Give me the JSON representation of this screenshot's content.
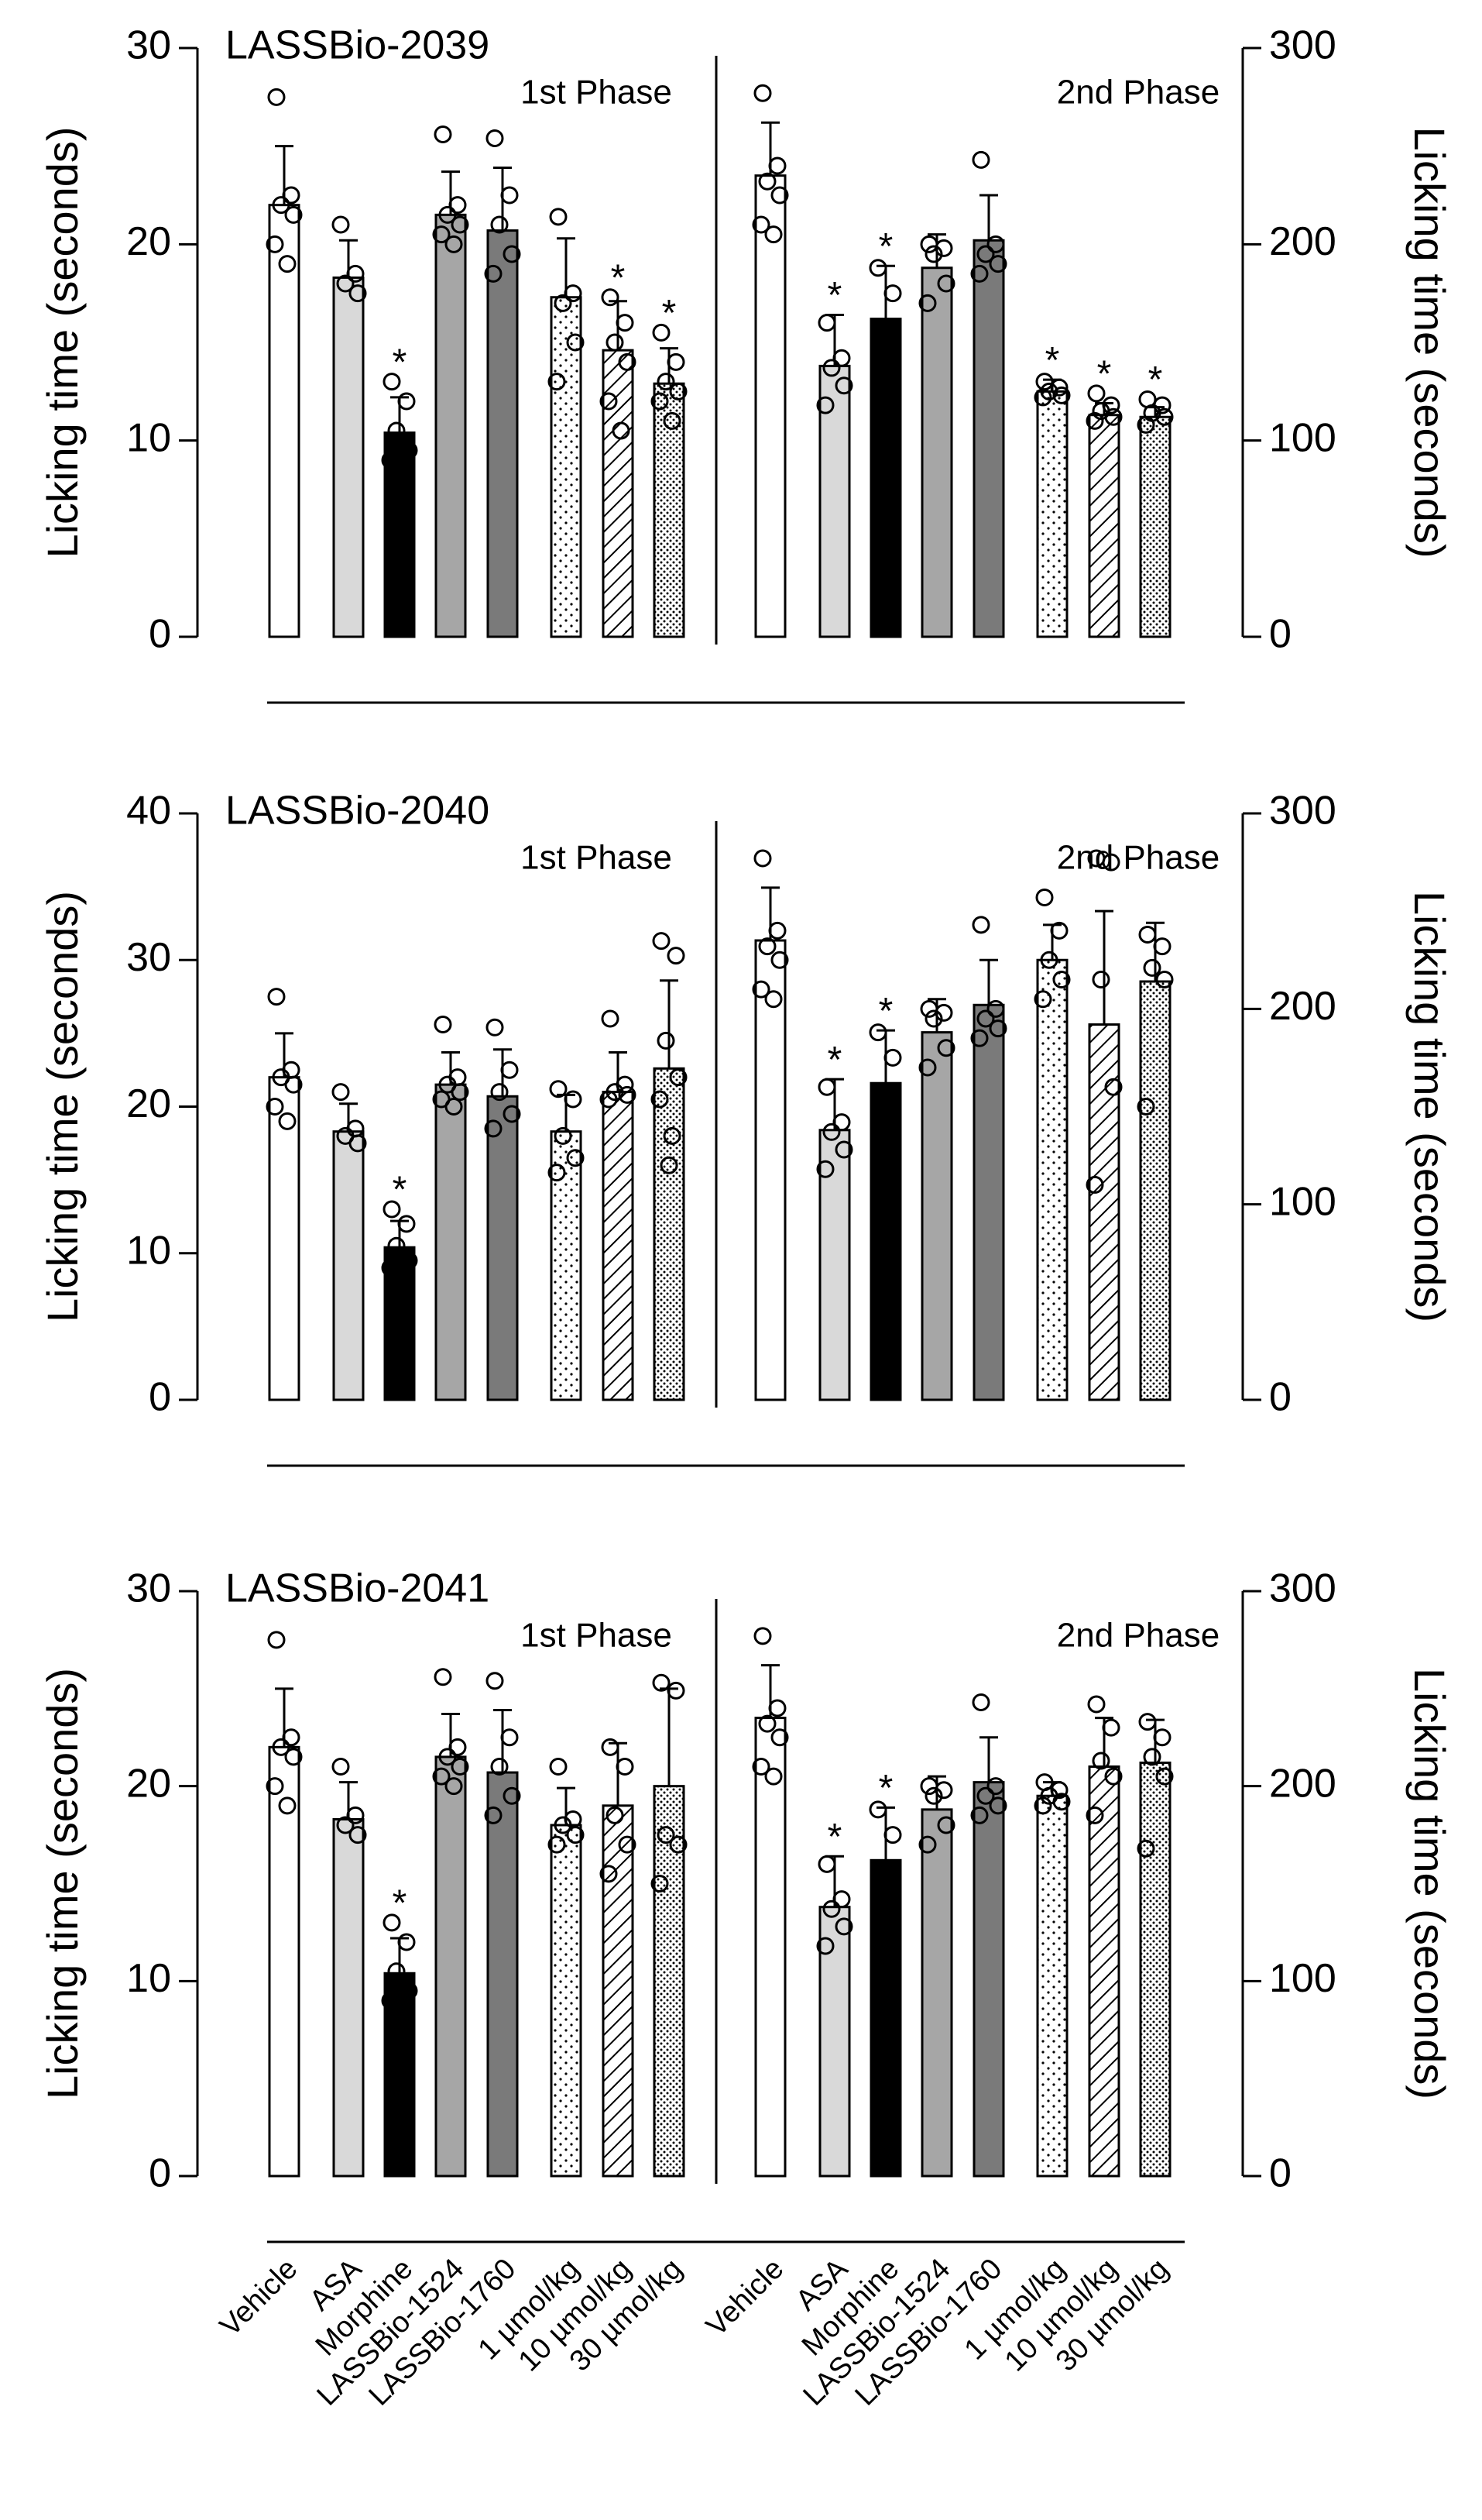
{
  "chart_data": [
    {
      "type": "bar",
      "title": "LASSBio-2039",
      "ylabel": "Licking time (seconds)",
      "y2label": "Licking time (seconds)",
      "ylim": [
        0,
        30
      ],
      "yticks": [
        0,
        10,
        20,
        30
      ],
      "y2lim": [
        0,
        300
      ],
      "y2ticks": [
        0,
        100,
        200,
        300
      ],
      "fills": [
        "#ffffff",
        "#d9d9d9",
        "#000000",
        "#a6a6a6",
        "#7a7a7a",
        "dots",
        "hatch",
        "dense"
      ],
      "significance_marker": "*",
      "series": [
        {
          "name": "1st Phase",
          "values": [
            22,
            18.3,
            10.4,
            21.5,
            20.7,
            17.3,
            14.6,
            12.9
          ],
          "errors": [
            3,
            1.9,
            1.8,
            2.2,
            3.2,
            3,
            2.5,
            1.8
          ],
          "points": [
            [
              27.5,
              22.5,
              22,
              21.5,
              20,
              19
            ],
            [
              21,
              18.5,
              18,
              17.5
            ],
            [
              13,
              12,
              10.5,
              9.5,
              9,
              8.8
            ],
            [
              25.6,
              22,
              21.5,
              21,
              20.5,
              20
            ],
            [
              25.4,
              22.5,
              21,
              19.5,
              18.5
            ],
            [
              21.4,
              17.5,
              17,
              15,
              13
            ],
            [
              17.3,
              16,
              15,
              14,
              12,
              10.5
            ],
            [
              15.5,
              14,
              13,
              12.5,
              12,
              11
            ]
          ],
          "significant": [
            false,
            false,
            true,
            false,
            false,
            false,
            true,
            true
          ]
        },
        {
          "name": "2nd Phase",
          "axis": "y2",
          "values": [
            235,
            138,
            162,
            188,
            202,
            125,
            113,
            112
          ],
          "errors": [
            27,
            26,
            27,
            17,
            23,
            6,
            6,
            5
          ],
          "points": [
            [
              277,
              240,
              232,
              225,
              210,
              205
            ],
            [
              160,
              142,
              137,
              128,
              118
            ],
            [
              188,
              175
            ],
            [
              200,
              198,
              195,
              180,
              170
            ],
            [
              243,
              200,
              195,
              190,
              185
            ],
            [
              130,
              127,
              125,
              123,
              122
            ],
            [
              124,
              118,
              115,
              112,
              110
            ],
            [
              121,
              118,
              114,
              112,
              108
            ]
          ],
          "significant": [
            false,
            true,
            true,
            false,
            false,
            true,
            true,
            true
          ]
        }
      ]
    },
    {
      "type": "bar",
      "title": "LASSBio-2040",
      "ylabel": "Licking time (seconds)",
      "y2label": "Licking time (seconds)",
      "ylim": [
        0,
        40
      ],
      "yticks": [
        0,
        10,
        20,
        30,
        40
      ],
      "y2lim": [
        0,
        300
      ],
      "y2ticks": [
        0,
        100,
        200,
        300
      ],
      "fills": [
        "#ffffff",
        "#d9d9d9",
        "#000000",
        "#a6a6a6",
        "#7a7a7a",
        "dots",
        "hatch",
        "dense"
      ],
      "significance_marker": "*",
      "series": [
        {
          "name": "1st Phase",
          "values": [
            22,
            18.3,
            10.4,
            21.5,
            20.7,
            18.3,
            21,
            22.6
          ],
          "errors": [
            3,
            1.9,
            1.8,
            2.2,
            3.2,
            2.5,
            2.7,
            6
          ],
          "points": [
            [
              27.5,
              22.5,
              22,
              21.5,
              20,
              19
            ],
            [
              21,
              18.5,
              18,
              17.5
            ],
            [
              13,
              12,
              10.5,
              9.5,
              9,
              8.8
            ],
            [
              25.6,
              22,
              21.5,
              21,
              20.5,
              20
            ],
            [
              25.4,
              22.5,
              21,
              19.5,
              18.5
            ],
            [
              21.2,
              20.5,
              18,
              16.5,
              15.5
            ],
            [
              26,
              21.5,
              21,
              20.8,
              20.5
            ],
            [
              31.3,
              30.3,
              24.5,
              22,
              20.5,
              18,
              16
            ]
          ],
          "significant": [
            false,
            false,
            true,
            false,
            false,
            false,
            false,
            false
          ]
        },
        {
          "name": "2nd Phase",
          "axis": "y2",
          "values": [
            235,
            138,
            162,
            188,
            202,
            225,
            192,
            214
          ],
          "errors": [
            27,
            26,
            27,
            17,
            23,
            18,
            58,
            30
          ],
          "points": [
            [
              277,
              240,
              232,
              225,
              210,
              205
            ],
            [
              160,
              142,
              137,
              128,
              118
            ],
            [
              188,
              175
            ],
            [
              200,
              198,
              195,
              180,
              170
            ],
            [
              243,
              200,
              195,
              190,
              185
            ],
            [
              257,
              240,
              225,
              215,
              205
            ],
            [
              277,
              275,
              215,
              160,
              110
            ],
            [
              238,
              232,
              221,
              215,
              150
            ]
          ],
          "significant": [
            false,
            true,
            true,
            false,
            false,
            false,
            false,
            false
          ]
        }
      ]
    },
    {
      "type": "bar",
      "title": "LASSBio-2041",
      "ylabel": "Licking time (seconds)",
      "y2label": "Licking time (seconds)",
      "ylim": [
        0,
        30
      ],
      "yticks": [
        0,
        10,
        20,
        30
      ],
      "y2lim": [
        0,
        300
      ],
      "y2ticks": [
        0,
        100,
        200,
        300
      ],
      "categories": [
        "Vehicle",
        "ASA",
        "Morphine",
        "LASSBio-1524",
        "LASSBio-1760",
        "1 µmol/kg",
        "10 µmol/kg",
        "30 µmol/kg"
      ],
      "fills": [
        "#ffffff",
        "#d9d9d9",
        "#000000",
        "#a6a6a6",
        "#7a7a7a",
        "dots",
        "hatch",
        "dense"
      ],
      "significance_marker": "*",
      "series": [
        {
          "name": "1st Phase",
          "values": [
            22,
            18.3,
            10.4,
            21.5,
            20.7,
            18,
            19,
            20
          ],
          "errors": [
            3,
            1.9,
            1.8,
            2.2,
            3.2,
            1.9,
            3.2,
            5
          ],
          "points": [
            [
              27.5,
              22.5,
              22,
              21.5,
              20,
              19
            ],
            [
              21,
              18.5,
              18,
              17.5
            ],
            [
              13,
              12,
              10.5,
              9.5,
              9,
              8.8
            ],
            [
              25.6,
              22,
              21.5,
              21,
              20.5,
              20
            ],
            [
              25.4,
              22.5,
              21,
              19.5,
              18.5
            ],
            [
              21,
              18.3,
              18,
              17.5,
              17
            ],
            [
              22,
              21,
              18.5,
              17,
              15.5
            ],
            [
              25.3,
              24.9,
              17.5,
              17,
              15
            ]
          ],
          "significant": [
            false,
            false,
            true,
            false,
            false,
            false,
            false,
            false
          ]
        },
        {
          "name": "2nd Phase",
          "axis": "y2",
          "values": [
            235,
            138,
            162,
            188,
            202,
            195,
            210,
            212
          ],
          "errors": [
            27,
            26,
            27,
            17,
            23,
            7,
            25,
            22
          ],
          "points": [
            [
              277,
              240,
              232,
              225,
              210,
              205
            ],
            [
              160,
              142,
              137,
              128,
              118
            ],
            [
              188,
              175
            ],
            [
              200,
              198,
              195,
              180,
              170
            ],
            [
              243,
              200,
              195,
              190,
              185
            ],
            [
              202,
              198,
              195,
              192,
              190
            ],
            [
              242,
              230,
              213,
              205,
              185
            ],
            [
              233,
              225,
              215,
              205,
              168
            ]
          ],
          "significant": [
            false,
            true,
            true,
            false,
            false,
            false,
            false,
            false
          ]
        }
      ]
    }
  ]
}
